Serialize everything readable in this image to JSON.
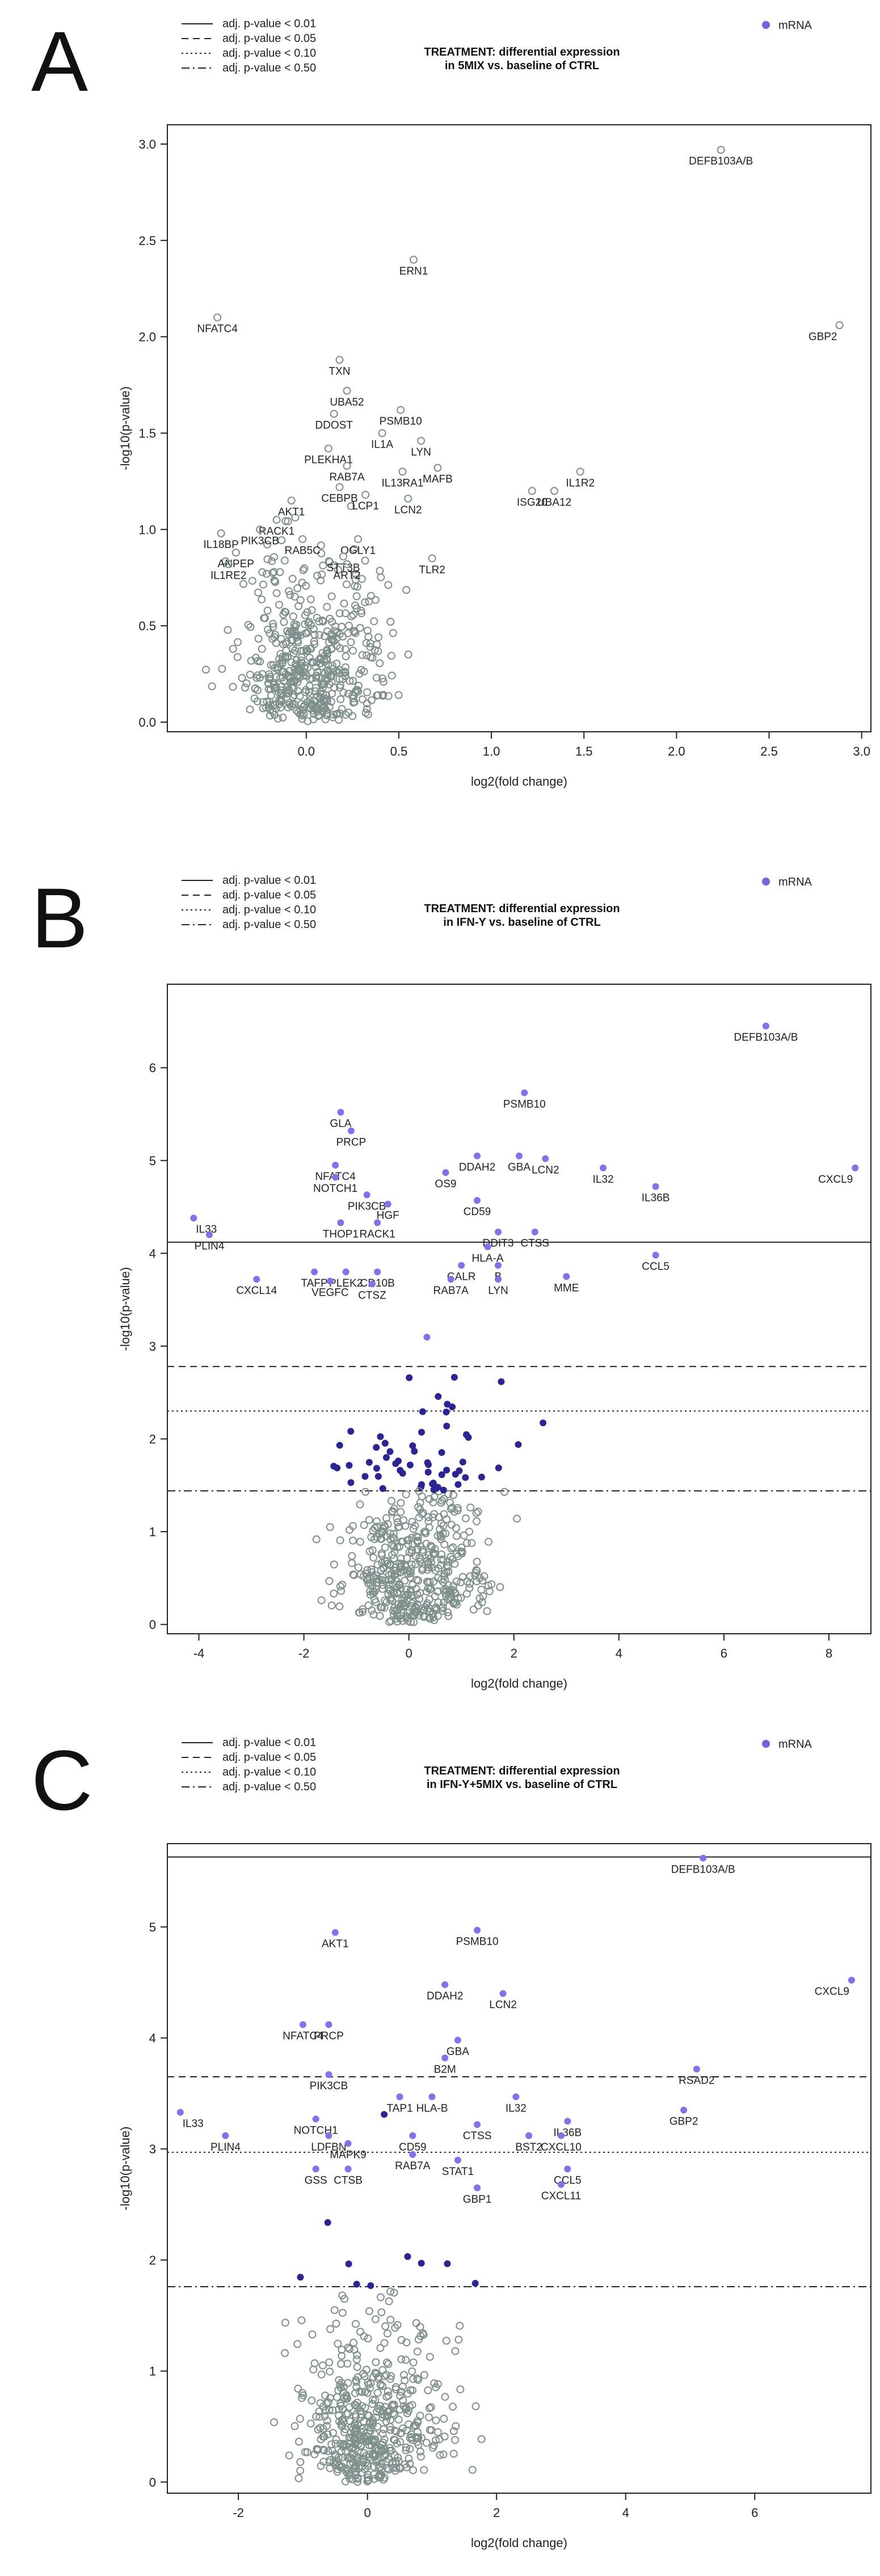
{
  "colors": {
    "mrna": "#6f66e0",
    "sig_dark": "#2b2594",
    "sig_light": "#7e73ea",
    "nonsig": "#7f8f8c",
    "axis": "#222222"
  },
  "chart_data": [
    {
      "type": "scatter",
      "panel_letter": "A",
      "title_line1": "TREATMENT: differential expression",
      "title_line2": "in 5MIX vs. baseline of CTRL",
      "xlabel": "log2(fold change)",
      "ylabel": "-log10(p-value)",
      "xlim": [
        -0.75,
        3.05
      ],
      "ylim": [
        -0.05,
        3.1
      ],
      "xticks": [
        0,
        0.5,
        1,
        1.5,
        2,
        2.5,
        3
      ],
      "xtick_labels": [
        "0.0",
        "0.5",
        "1.0",
        "1.5",
        "2.0",
        "2.5",
        "3.0"
      ],
      "yticks": [
        0,
        0.5,
        1,
        1.5,
        2,
        2.5,
        3
      ],
      "ytick_labels": [
        "0.0",
        "0.5",
        "1.0",
        "1.5",
        "2.0",
        "2.5",
        "3.0"
      ],
      "legend": [
        {
          "label": "adj. p-value < 0.01",
          "dash": "solid"
        },
        {
          "label": "adj. p-value < 0.05",
          "dash": "dashed"
        },
        {
          "label": "adj. p-value < 0.10",
          "dash": "dotted"
        },
        {
          "label": "adj. p-value < 0.50",
          "dash": "dotdash"
        }
      ],
      "series_label": "mRNA",
      "thresholds": [],
      "labeled_points": [
        {
          "label": "DEFB103A/B",
          "x": 2.24,
          "y": 2.97
        },
        {
          "label": "GBP2",
          "x": 2.88,
          "y": 2.06
        },
        {
          "label": "NFATC4",
          "x": -0.48,
          "y": 2.1
        },
        {
          "label": "ERN1",
          "x": 0.58,
          "y": 2.4
        },
        {
          "label": "TXN",
          "x": 0.18,
          "y": 1.88
        },
        {
          "label": "UBA52",
          "x": 0.22,
          "y": 1.72
        },
        {
          "label": "DDOST",
          "x": 0.15,
          "y": 1.6
        },
        {
          "label": "PSMB10",
          "x": 0.51,
          "y": 1.62
        },
        {
          "label": "IL1A",
          "x": 0.41,
          "y": 1.5
        },
        {
          "label": "LYN",
          "x": 0.62,
          "y": 1.46
        },
        {
          "label": "PLEKHA1",
          "x": 0.12,
          "y": 1.42
        },
        {
          "label": "RAB7A",
          "x": 0.22,
          "y": 1.33
        },
        {
          "label": "IL13RA1",
          "x": 0.52,
          "y": 1.3
        },
        {
          "label": "MAFB",
          "x": 0.71,
          "y": 1.32
        },
        {
          "label": "CEBPB",
          "x": 0.18,
          "y": 1.22
        },
        {
          "label": "LCP1",
          "x": 0.32,
          "y": 1.18
        },
        {
          "label": "IL1R2",
          "x": 1.48,
          "y": 1.3
        },
        {
          "label": "ISG20",
          "x": 1.22,
          "y": 1.2
        },
        {
          "label": "UBA12",
          "x": 1.34,
          "y": 1.2
        },
        {
          "label": "LCN2",
          "x": 0.55,
          "y": 1.16
        },
        {
          "label": "AKT1",
          "x": -0.08,
          "y": 1.15
        },
        {
          "label": "RACK1",
          "x": -0.16,
          "y": 1.05
        },
        {
          "label": "PIK3CB",
          "x": -0.25,
          "y": 1.0
        },
        {
          "label": "IL18BP",
          "x": -0.46,
          "y": 0.98
        },
        {
          "label": "RAB5C",
          "x": -0.02,
          "y": 0.95
        },
        {
          "label": "OGLY1",
          "x": 0.28,
          "y": 0.95
        },
        {
          "label": "ANPEP",
          "x": -0.38,
          "y": 0.88
        },
        {
          "label": "STT3B",
          "x": 0.2,
          "y": 0.86
        },
        {
          "label": "IL1RE2",
          "x": -0.42,
          "y": 0.82
        },
        {
          "label": "TLR2",
          "x": 0.68,
          "y": 0.85
        },
        {
          "label": "ART2",
          "x": 0.22,
          "y": 0.82
        }
      ]
    },
    {
      "type": "scatter",
      "panel_letter": "B",
      "title_line1": "TREATMENT: differential expression",
      "title_line2": "in IFN-Y vs. baseline of CTRL",
      "xlabel": "log2(fold change)",
      "ylabel": "-log10(p-value)",
      "xlim": [
        -4.6,
        8.8
      ],
      "ylim": [
        -0.1,
        6.9
      ],
      "xticks": [
        -4,
        -2,
        0,
        2,
        4,
        6,
        8
      ],
      "xtick_labels": [
        "-4",
        "-2",
        "0",
        "2",
        "4",
        "6",
        "8"
      ],
      "yticks": [
        0,
        1,
        2,
        3,
        4,
        5,
        6
      ],
      "ytick_labels": [
        "0",
        "1",
        "2",
        "3",
        "4",
        "5",
        "6"
      ],
      "legend": [
        {
          "label": "adj. p-value < 0.01",
          "dash": "solid"
        },
        {
          "label": "adj. p-value < 0.05",
          "dash": "dashed"
        },
        {
          "label": "adj. p-value < 0.10",
          "dash": "dotted"
        },
        {
          "label": "adj. p-value < 0.50",
          "dash": "dotdash"
        }
      ],
      "series_label": "mRNA",
      "thresholds": [
        {
          "y": 4.12,
          "dash": "solid"
        },
        {
          "y": 2.78,
          "dash": "dashed"
        },
        {
          "y": 2.3,
          "dash": "dotted"
        },
        {
          "y": 1.44,
          "dash": "dotdash"
        }
      ],
      "labeled_points": [
        {
          "label": "DEFB103A/B",
          "x": 6.8,
          "y": 6.45
        },
        {
          "label": "CXCL9",
          "x": 8.5,
          "y": 4.92
        },
        {
          "label": "PSMB10",
          "x": 2.2,
          "y": 5.73
        },
        {
          "label": "GLA",
          "x": -1.3,
          "y": 5.52
        },
        {
          "label": "PRCP",
          "x": -1.1,
          "y": 5.32
        },
        {
          "label": "DDAH2",
          "x": 1.3,
          "y": 5.05
        },
        {
          "label": "GBA",
          "x": 2.1,
          "y": 5.05
        },
        {
          "label": "LCN2",
          "x": 2.6,
          "y": 5.02
        },
        {
          "label": "IL32",
          "x": 3.7,
          "y": 4.92
        },
        {
          "label": "IL36B",
          "x": 4.7,
          "y": 4.72
        },
        {
          "label": "NFATC4",
          "x": -1.4,
          "y": 4.95
        },
        {
          "label": "NOTCH1",
          "x": -1.4,
          "y": 4.82
        },
        {
          "label": "OS9",
          "x": 0.7,
          "y": 4.87
        },
        {
          "label": "PIK3CB",
          "x": -0.8,
          "y": 4.63
        },
        {
          "label": "HGF",
          "x": -0.4,
          "y": 4.53
        },
        {
          "label": "CD59",
          "x": 1.3,
          "y": 4.57
        },
        {
          "label": "IL33",
          "x": -4.1,
          "y": 4.38
        },
        {
          "label": "THOP1",
          "x": -1.3,
          "y": 4.33
        },
        {
          "label": "RACK1",
          "x": -0.6,
          "y": 4.33
        },
        {
          "label": "PLIN4",
          "x": -3.8,
          "y": 4.2
        },
        {
          "label": "DDIT3",
          "x": 1.7,
          "y": 4.23
        },
        {
          "label": "CTSS",
          "x": 2.4,
          "y": 4.23
        },
        {
          "label": "HLA-A",
          "x": 1.5,
          "y": 4.07
        },
        {
          "label": "CCL5",
          "x": 4.7,
          "y": 3.98
        },
        {
          "label": "CALR",
          "x": 1.0,
          "y": 3.87
        },
        {
          "label": "B",
          "x": 1.7,
          "y": 3.87
        },
        {
          "label": "TAFP",
          "x": -1.8,
          "y": 3.8
        },
        {
          "label": "PLEK2",
          "x": -1.2,
          "y": 3.8
        },
        {
          "label": "CD10B",
          "x": -0.6,
          "y": 3.8
        },
        {
          "label": "MME",
          "x": 3.0,
          "y": 3.75
        },
        {
          "label": "RAB7A",
          "x": 0.8,
          "y": 3.72
        },
        {
          "label": "LYN",
          "x": 1.7,
          "y": 3.72
        },
        {
          "label": "CXCL14",
          "x": -2.9,
          "y": 3.72
        },
        {
          "label": "VEGFC",
          "x": -1.5,
          "y": 3.7
        },
        {
          "label": "CTSZ",
          "x": -0.7,
          "y": 3.67
        }
      ]
    },
    {
      "type": "scatter",
      "panel_letter": "C",
      "title_line1": "TREATMENT: differential expression",
      "title_line2": "in IFN-Y+5MIX vs. baseline of CTRL",
      "xlabel": "log2(fold change)",
      "ylabel": "-log10(p-value)",
      "xlim": [
        -3.1,
        7.8
      ],
      "ylim": [
        -0.1,
        5.75
      ],
      "xticks": [
        -2,
        0,
        2,
        4,
        6
      ],
      "xtick_labels": [
        "-2",
        "0",
        "2",
        "4",
        "6"
      ],
      "yticks": [
        0,
        1,
        2,
        3,
        4,
        5
      ],
      "ytick_labels": [
        "0",
        "1",
        "2",
        "3",
        "4",
        "5"
      ],
      "legend": [
        {
          "label": "adj. p-value < 0.01",
          "dash": "solid"
        },
        {
          "label": "adj. p-value < 0.05",
          "dash": "dashed"
        },
        {
          "label": "adj. p-value < 0.10",
          "dash": "dotted"
        },
        {
          "label": "adj. p-value < 0.50",
          "dash": "dotdash"
        }
      ],
      "series_label": "mRNA",
      "thresholds": [
        {
          "y": 5.63,
          "dash": "solid"
        },
        {
          "y": 3.65,
          "dash": "dashed"
        },
        {
          "y": 2.97,
          "dash": "dotted"
        },
        {
          "y": 1.76,
          "dash": "dotdash"
        }
      ],
      "labeled_points": [
        {
          "label": "DEFB103A/B",
          "x": 5.2,
          "y": 5.62
        },
        {
          "label": "CXCL9",
          "x": 7.5,
          "y": 4.52
        },
        {
          "label": "AKT1",
          "x": -0.5,
          "y": 4.95
        },
        {
          "label": "PSMB10",
          "x": 1.7,
          "y": 4.97
        },
        {
          "label": "DDAH2",
          "x": 1.2,
          "y": 4.48
        },
        {
          "label": "LCN2",
          "x": 2.1,
          "y": 4.4
        },
        {
          "label": "NFATC4",
          "x": -1.0,
          "y": 4.12
        },
        {
          "label": "PRCP",
          "x": -0.6,
          "y": 4.12
        },
        {
          "label": "GBA",
          "x": 1.4,
          "y": 3.98
        },
        {
          "label": "B2M",
          "x": 1.2,
          "y": 3.82
        },
        {
          "label": "RSAD2",
          "x": 5.1,
          "y": 3.72
        },
        {
          "label": "GBP2",
          "x": 4.9,
          "y": 3.35
        },
        {
          "label": "PIK3CB",
          "x": -0.6,
          "y": 3.67
        },
        {
          "label": "TAP1",
          "x": 0.5,
          "y": 3.47
        },
        {
          "label": "HLA-B",
          "x": 1.0,
          "y": 3.47
        },
        {
          "label": "IL32",
          "x": 2.3,
          "y": 3.47
        },
        {
          "label": "IL33",
          "x": -2.9,
          "y": 3.33
        },
        {
          "label": "NOTCH1",
          "x": -0.8,
          "y": 3.27
        },
        {
          "label": "CTSS",
          "x": 1.7,
          "y": 3.22
        },
        {
          "label": "IL36B",
          "x": 3.1,
          "y": 3.25
        },
        {
          "label": "PLIN4",
          "x": -2.2,
          "y": 3.12
        },
        {
          "label": "LDFBN",
          "x": -0.6,
          "y": 3.12
        },
        {
          "label": "CD59",
          "x": 0.7,
          "y": 3.12
        },
        {
          "label": "BST2",
          "x": 2.5,
          "y": 3.12
        },
        {
          "label": "CXCL10",
          "x": 3.0,
          "y": 3.12
        },
        {
          "label": "MAPK9",
          "x": -0.3,
          "y": 3.05
        },
        {
          "label": "RAB7A",
          "x": 0.7,
          "y": 2.95
        },
        {
          "label": "STAT1",
          "x": 1.4,
          "y": 2.9
        },
        {
          "label": "CCL5",
          "x": 3.1,
          "y": 2.82
        },
        {
          "label": "GSS",
          "x": -0.8,
          "y": 2.82
        },
        {
          "label": "CTSB",
          "x": -0.3,
          "y": 2.82
        },
        {
          "label": "CXCL11",
          "x": 3.0,
          "y": 2.68
        },
        {
          "label": "GBP1",
          "x": 1.7,
          "y": 2.65
        }
      ]
    }
  ]
}
